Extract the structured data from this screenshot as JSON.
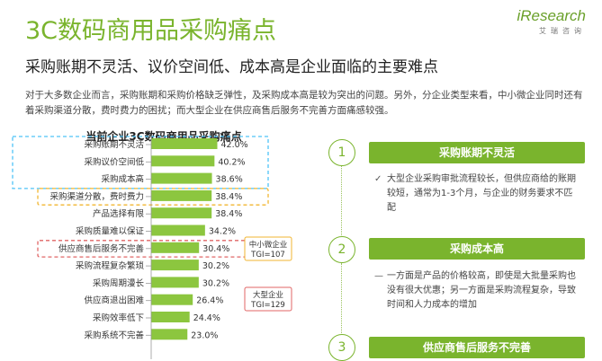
{
  "header": {
    "title": "3C数码商用品采购痛点",
    "subtitle": "采购账期不灵活、议价空间低、成本高是企业面临的主要难点",
    "description": "对于大多数企业而言，采购账期和采购价格缺乏弹性，及采购成本高是较为突出的问题。另外，分企业类型来看，中小微企业同时还有着采购渠道分散，费时费力的困扰；而大型企业在供应商售后服务不完善方面痛感较强。"
  },
  "logo": {
    "brand_i": "i",
    "brand_rest": "Research",
    "sub": "艾瑞咨询"
  },
  "chart_data": {
    "type": "bar",
    "orientation": "horizontal",
    "title": "当前企业3C数码商用品采购痛点",
    "categories": [
      "采购账期不灵活",
      "采购议价空间低",
      "采购成本高",
      "采购渠道分散，费时费力",
      "产品选择有限",
      "采购质量难以保证",
      "供应商售后服务不完善",
      "采购流程复杂繁琐",
      "采购周期漫长",
      "供应商退出困难",
      "采购效率低下",
      "采购系统不完善"
    ],
    "values": [
      42.0,
      40.2,
      38.6,
      38.4,
      38.4,
      34.2,
      30.4,
      30.2,
      30.2,
      26.4,
      24.4,
      23.0
    ],
    "value_labels": [
      "42.0%",
      "40.2%",
      "38.6%",
      "38.4%",
      "38.4%",
      "34.2%",
      "30.4%",
      "30.2%",
      "30.2%",
      "26.4%",
      "24.4%",
      "23.0%"
    ],
    "bar_color": "#8cc63f",
    "annotations": [
      {
        "text_1": "中小微企业",
        "text_2": "TGI=107",
        "category": "采购渠道分散，费时费力",
        "color": "#f2b632"
      },
      {
        "text_1": "大型企业",
        "text_2": "TGI=129",
        "category": "供应商售后服务不完善",
        "color": "#e06666"
      }
    ],
    "highlight_box_color": "#4fc3f7"
  },
  "points": [
    {
      "num": "1",
      "label": "采购账期不灵活",
      "mark": "✓",
      "text": "大型企业采购审批流程较长，但供应商给的账期较短，通常为1-3个月，与企业的财务要求不匹配"
    },
    {
      "num": "2",
      "label": "采购成本高",
      "mark": "—",
      "text": "一方面是产品的价格较高，即使是大批量采购也没有很大优惠；另一方面是采购流程复杂，导致时间和人力成本的增加"
    },
    {
      "num": "3",
      "label": "供应商售后服务不完善"
    }
  ]
}
